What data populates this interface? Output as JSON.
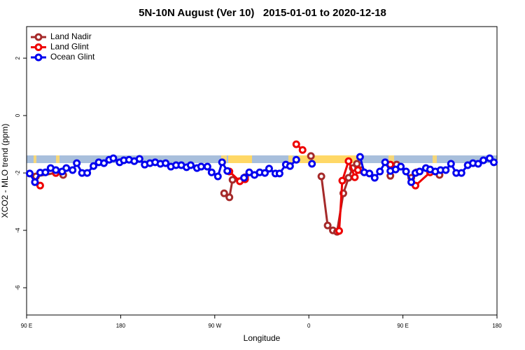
{
  "chart_data": {
    "type": "line",
    "title": "5N-10N August (Ver 10)   2015-01-01 to 2020-12-18",
    "x_label": "Longitude",
    "y_label": "XCO2 - MLO trend (ppm)",
    "xlim": [
      90,
      540
    ],
    "xticks": [
      {
        "value": 90,
        "label": "90 E"
      },
      180,
      {
        "value": 270,
        "label": "90 W"
      },
      {
        "value": 360,
        "label": "0"
      },
      {
        "value": 450,
        "label": "90 E"
      },
      {
        "value": 540,
        "label": "180"
      }
    ],
    "ylim": [
      -6.95,
      3.1
    ],
    "yticks": [
      -6,
      -4,
      -2,
      0,
      2
    ],
    "legend": "top-left",
    "series": [
      {
        "name": "Land Nadir",
        "color": "#a52a2a",
        "x": [
          99,
          118,
          125,
          200,
          279,
          284,
          287,
          299,
          330,
          362,
          367,
          372,
          378,
          383,
          387,
          393,
          398,
          402,
          406,
          410,
          425,
          438,
          444,
          450,
          458,
          463,
          475,
          485
        ],
        "values": [
          -2.12,
          -2.0,
          -2.07,
          null,
          -2.71,
          -2.85,
          -2.24,
          -2.15,
          null,
          -1.41,
          null,
          -2.12,
          -3.83,
          -4.0,
          -4.05,
          -2.71,
          -2.17,
          -1.83,
          -1.68,
          -1.9,
          null,
          -2.1,
          -1.71,
          null,
          -2.17,
          -1.98,
          null,
          -2.07
        ]
      },
      {
        "name": "Land Glint",
        "color": "#ee0000",
        "x": [
          103,
          110,
          118,
          200,
          284,
          294,
          299,
          320,
          348,
          354,
          370,
          389,
          392,
          398,
          404,
          407,
          420,
          438,
          450,
          462,
          476
        ],
        "values": [
          -2.44,
          null,
          -2.0,
          null,
          -1.95,
          -2.29,
          -2.22,
          null,
          -1.0,
          -1.2,
          null,
          -4.02,
          -2.27,
          -1.59,
          -2.15,
          -1.9,
          null,
          -1.71,
          null,
          -2.44,
          -1.98
        ]
      },
      {
        "name": "Ocean Glint",
        "color": "#0000ee",
        "x": [
          93,
          98,
          103,
          108,
          113,
          118,
          124,
          128,
          134,
          138,
          143,
          148,
          154,
          159,
          164,
          169,
          173,
          179,
          183,
          188,
          193,
          198,
          203,
          208,
          213,
          218,
          223,
          228,
          233,
          238,
          243,
          247,
          253,
          257,
          263,
          267,
          273,
          277,
          282,
          290,
          298,
          303,
          308,
          313,
          318,
          322,
          328,
          332,
          338,
          342,
          348,
          355,
          363,
          386,
          409,
          413,
          418,
          423,
          428,
          433,
          438,
          443,
          448,
          453,
          458,
          462,
          466,
          472,
          476,
          481,
          486,
          491,
          496,
          501,
          506,
          512,
          517,
          522,
          527,
          533,
          537
        ],
        "values": [
          -2.02,
          -2.32,
          -1.99,
          -1.98,
          -1.83,
          -1.9,
          -1.95,
          -1.83,
          -1.9,
          -1.66,
          -2.0,
          -2.0,
          -1.76,
          -1.63,
          -1.66,
          -1.54,
          -1.49,
          -1.63,
          -1.56,
          -1.54,
          -1.59,
          -1.51,
          -1.71,
          -1.66,
          -1.63,
          -1.68,
          -1.66,
          -1.78,
          -1.73,
          -1.73,
          -1.8,
          -1.73,
          -1.83,
          -1.78,
          -1.78,
          -1.98,
          -2.12,
          -1.63,
          -1.93,
          null,
          -2.17,
          -1.98,
          -2.07,
          -1.98,
          -2.0,
          -1.85,
          -2.02,
          -2.02,
          -1.71,
          -1.76,
          -1.54,
          null,
          -1.68,
          null,
          -1.44,
          -1.98,
          -2.02,
          -2.17,
          -1.95,
          -1.63,
          -1.93,
          -1.88,
          -1.78,
          -1.95,
          -2.32,
          -2.0,
          -1.95,
          -1.83,
          -1.88,
          -1.95,
          -1.9,
          -1.9,
          -1.68,
          -2.0,
          -2.0,
          -1.73,
          -1.66,
          -1.68,
          -1.56,
          -1.49,
          -1.63
        ]
      }
    ]
  }
}
